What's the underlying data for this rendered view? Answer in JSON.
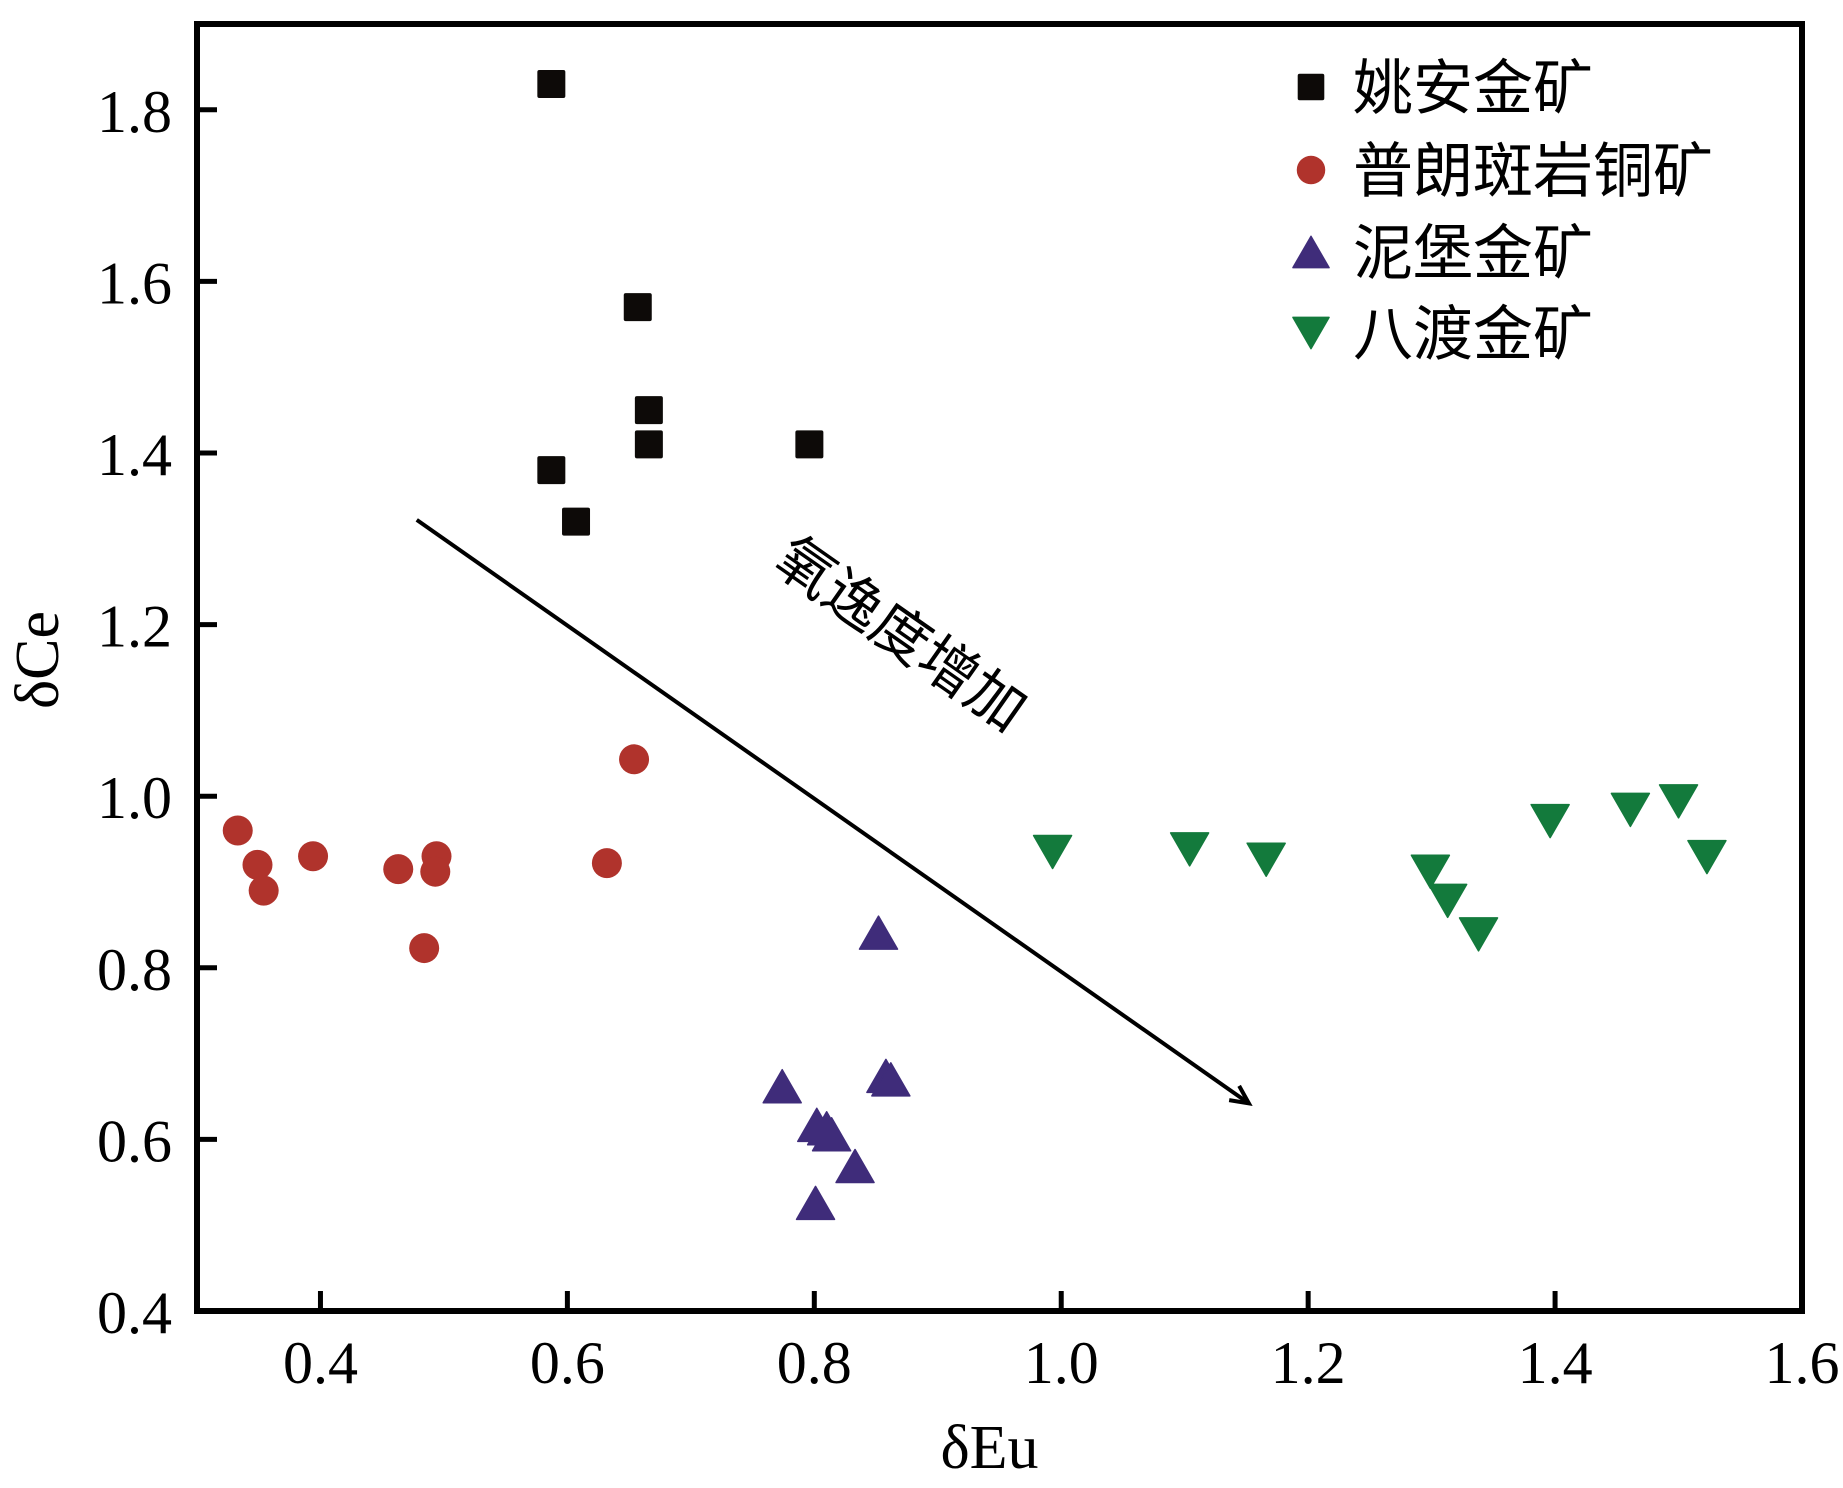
{
  "chart_data": {
    "type": "scatter",
    "title": "",
    "xlabel": "δEu",
    "ylabel": "δCe",
    "xlim": [
      0.3,
      1.6
    ],
    "ylim": [
      0.4,
      1.9
    ],
    "grid": false,
    "legend_position": "top-right",
    "x_ticks": [
      0.4,
      0.6,
      0.8,
      1.0,
      1.2,
      1.4,
      1.6
    ],
    "x_tick_labels": [
      "0.4",
      "0.6",
      "0.8",
      "1.0",
      "1.2",
      "1.4",
      "1.6"
    ],
    "y_ticks": [
      0.4,
      0.6,
      0.8,
      1.0,
      1.2,
      1.4,
      1.6,
      1.8
    ],
    "y_tick_labels": [
      "0.4",
      "0.6",
      "0.8",
      "1.0",
      "1.2",
      "1.4",
      "1.6",
      "1.8"
    ],
    "series": [
      {
        "name": "姚安金矿",
        "marker": "square",
        "color": "#0d0a08",
        "points": [
          [
            0.587,
            1.83
          ],
          [
            0.657,
            1.57
          ],
          [
            0.666,
            1.45
          ],
          [
            0.666,
            1.41
          ],
          [
            0.796,
            1.41
          ],
          [
            0.587,
            1.38
          ],
          [
            0.607,
            1.32
          ]
        ]
      },
      {
        "name": "普朗斑岩铜矿",
        "marker": "circle",
        "color": "#b0332c",
        "points": [
          [
            0.333,
            0.96
          ],
          [
            0.349,
            0.92
          ],
          [
            0.354,
            0.89
          ],
          [
            0.394,
            0.93
          ],
          [
            0.463,
            0.915
          ],
          [
            0.494,
            0.93
          ],
          [
            0.493,
            0.912
          ],
          [
            0.484,
            0.823
          ],
          [
            0.632,
            0.922
          ],
          [
            0.654,
            1.043
          ]
        ]
      },
      {
        "name": "泥堡金矿",
        "marker": "triangle-up",
        "color": "#3f2c7a",
        "points": [
          [
            0.852,
            0.841
          ],
          [
            0.858,
            0.674
          ],
          [
            0.862,
            0.67
          ],
          [
            0.774,
            0.662
          ],
          [
            0.802,
            0.617
          ],
          [
            0.81,
            0.613
          ],
          [
            0.814,
            0.606
          ],
          [
            0.833,
            0.569
          ],
          [
            0.801,
            0.526
          ]
        ]
      },
      {
        "name": "八渡金矿",
        "marker": "triangle-down",
        "color": "#137a3c",
        "points": [
          [
            0.993,
            0.935
          ],
          [
            1.104,
            0.938
          ],
          [
            1.166,
            0.926
          ],
          [
            1.299,
            0.912
          ],
          [
            1.313,
            0.878
          ],
          [
            1.338,
            0.839
          ],
          [
            1.396,
            0.971
          ],
          [
            1.461,
            0.984
          ],
          [
            1.5,
            0.994
          ],
          [
            1.523,
            0.929
          ]
        ]
      }
    ],
    "annotations": [
      {
        "type": "arrow",
        "from": [
          0.478,
          1.322
        ],
        "to": [
          1.152,
          0.642
        ],
        "text": "氧逸度增加"
      }
    ]
  }
}
